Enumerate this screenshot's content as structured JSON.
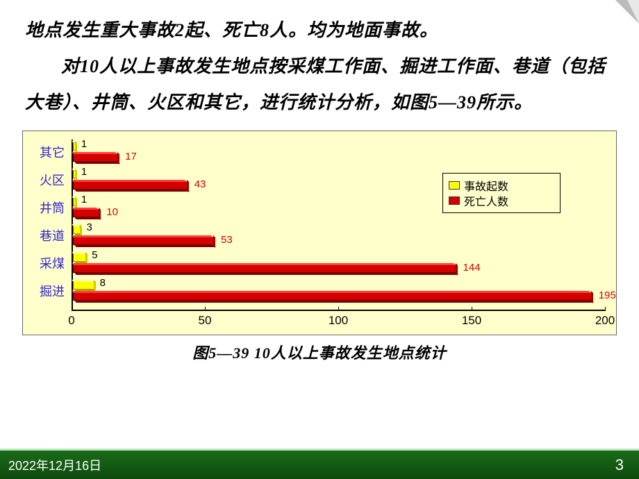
{
  "text": {
    "line1": "地点发生重大事故2起、死亡8人。均为地面事故。",
    "line2": "对10人以上事故发生地点按采煤工作面、掘进工作面、巷道（包括大巷）、井筒、火区和其它，进行统计分析，如图5—39所示。"
  },
  "chart": {
    "type": "grouped-horizontal-bar",
    "background_color": "#ffffcc",
    "category_color": "#3324cc",
    "xlim": [
      0,
      200
    ],
    "xticks": [
      0,
      50,
      100,
      150,
      200
    ],
    "categories": [
      "其它",
      "火区",
      "井筒",
      "巷道",
      "采煤",
      "掘进"
    ],
    "series": [
      {
        "name": "事故起数",
        "color": "#ffff00",
        "values": [
          1,
          1,
          1,
          3,
          5,
          8
        ]
      },
      {
        "name": "死亡人数",
        "color": "#d40000",
        "values": [
          17,
          43,
          10,
          53,
          144,
          195
        ]
      }
    ],
    "legend": {
      "items": [
        "事故起数",
        "死亡人数"
      ],
      "colors": [
        "#ffff00",
        "#d40000"
      ]
    },
    "caption": "图5—39  10人以上事故发生地点统计"
  },
  "footer": {
    "date": "2022年12月16日",
    "page": "3",
    "bg_gradient_from": "#1a6b1a",
    "bg_gradient_to": "#0e4a0e"
  }
}
